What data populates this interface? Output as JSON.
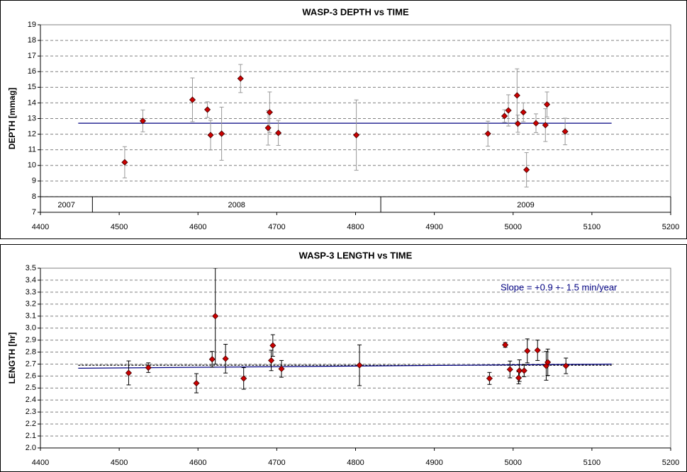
{
  "chart_data": [
    {
      "type": "scatter",
      "title": "WASP-3 DEPTH vs TIME",
      "y_label": "DEPTH [mmag]",
      "xlim": [
        4400,
        5200
      ],
      "xticks": [
        4400,
        4500,
        4600,
        4700,
        4800,
        4900,
        5000,
        5100,
        5200
      ],
      "ylim": [
        7,
        19
      ],
      "yticks": [
        7,
        8,
        9,
        10,
        11,
        12,
        13,
        14,
        15,
        16,
        17,
        18,
        19
      ],
      "grid": true,
      "series": [
        {
          "color": "#cc0000",
          "error_color": "#999999",
          "x": [
            4507,
            4530,
            4593,
            4612,
            4616,
            4630,
            4654,
            4689,
            4691,
            4702,
            4801,
            4968,
            4989,
            4994,
            5005,
            5006,
            5013,
            5017,
            5029,
            5041,
            5043,
            5066
          ],
          "values": [
            10.2,
            12.85,
            14.2,
            13.57,
            11.94,
            12.03,
            15.56,
            12.4,
            13.4,
            12.08,
            11.94,
            12.03,
            13.16,
            13.52,
            14.48,
            12.67,
            13.4,
            9.72,
            12.7,
            12.58,
            13.9,
            12.17
          ],
          "errors": [
            1.0,
            0.7,
            1.4,
            0.5,
            0.95,
            1.7,
            0.9,
            1.1,
            1.3,
            0.8,
            2.25,
            0.8,
            0.4,
            1.0,
            1.7,
            0.55,
            0.6,
            1.1,
            0.6,
            1.05,
            0.8,
            0.85
          ]
        }
      ],
      "lines": [
        {
          "color": "#000080",
          "dashed": false,
          "x": [
            4448,
            5125
          ],
          "values": [
            12.7,
            12.7
          ]
        }
      ],
      "year_bands": [
        {
          "label": "2007",
          "start": 4400,
          "end": 4466
        },
        {
          "label": "2008",
          "start": 4466,
          "end": 4832
        },
        {
          "label": "2009",
          "start": 4832,
          "end": 5200
        }
      ]
    },
    {
      "type": "scatter",
      "title": "WASP-3 LENGTH vs TIME",
      "y_label": "LENGTH [hr]",
      "xlim": [
        4400,
        5200
      ],
      "xticks": [
        4400,
        4500,
        4600,
        4700,
        4800,
        4900,
        5000,
        5100,
        5200
      ],
      "ylim": [
        2.0,
        3.5
      ],
      "yticks": [
        {
          "value": 2,
          "label": "2.0"
        },
        2.1,
        2.2,
        2.3,
        2.4,
        2.5,
        2.6,
        2.7,
        2.8,
        2.9,
        {
          "value": 3,
          "label": "3.0"
        },
        3.1,
        3.2,
        3.3,
        3.4,
        3.5
      ],
      "grid": true,
      "series": [
        {
          "color": "#cc0000",
          "error_color": "#000000",
          "x": [
            4512,
            4537,
            4598,
            4618,
            4622,
            4635,
            4658,
            4693,
            4695,
            4706,
            4805,
            4970,
            4990,
            4996,
            5007,
            5008,
            5014,
            5018,
            5031,
            5042,
            5044,
            5067
          ],
          "values": [
            2.626,
            2.67,
            2.54,
            2.74,
            3.1,
            2.745,
            2.58,
            2.73,
            2.855,
            2.66,
            2.69,
            2.58,
            2.86,
            2.655,
            2.585,
            2.645,
            2.645,
            2.81,
            2.815,
            2.685,
            2.715,
            2.685
          ],
          "errors": [
            0.1,
            0.04,
            0.08,
            0.065,
            0.4,
            0.12,
            0.09,
            0.085,
            0.09,
            0.07,
            0.17,
            0.05,
            0.02,
            0.07,
            0.05,
            0.09,
            0.05,
            0.1,
            0.085,
            0.12,
            0.11,
            0.065
          ]
        }
      ],
      "lines": [
        {
          "color": "#000000",
          "dashed": true,
          "x": [
            4448,
            5125
          ],
          "values": [
            2.69,
            2.69
          ]
        },
        {
          "color": "#000080",
          "dashed": false,
          "x": [
            4448,
            5125
          ],
          "values": [
            2.665,
            2.7
          ]
        }
      ],
      "annotation": "Slope = +0.9 +- 1.5 min/year"
    }
  ]
}
